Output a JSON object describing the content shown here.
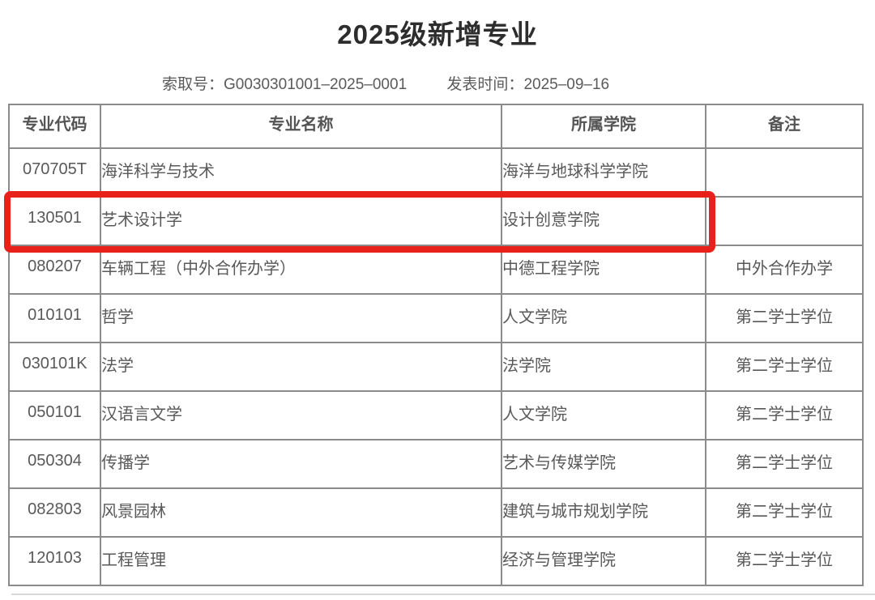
{
  "page": {
    "title": "2025级新增专业"
  },
  "meta": {
    "request_label": "索取号：",
    "request_value": "G0030301001–2025–0001",
    "publish_label": "发表时间：",
    "publish_value": "2025–09–16"
  },
  "table": {
    "columns": [
      "专业代码",
      "专业名称",
      "所属学院",
      "备注"
    ],
    "rows": [
      {
        "code": "070705T",
        "name": "海洋科学与技术",
        "college": "海洋与地球科学学院",
        "remark": "",
        "highlighted": false
      },
      {
        "code": "130501",
        "name": "艺术设计学",
        "college": "设计创意学院",
        "remark": "",
        "highlighted": true
      },
      {
        "code": "080207",
        "name": "车辆工程（中外合作办学）",
        "college": "中德工程学院",
        "remark": "中外合作办学",
        "highlighted": false
      },
      {
        "code": "010101",
        "name": "哲学",
        "college": "人文学院",
        "remark": "第二学士学位",
        "highlighted": false
      },
      {
        "code": "030101K",
        "name": "法学",
        "college": "法学院",
        "remark": "第二学士学位",
        "highlighted": false
      },
      {
        "code": "050101",
        "name": "汉语言文学",
        "college": "人文学院",
        "remark": "第二学士学位",
        "highlighted": false
      },
      {
        "code": "050304",
        "name": "传播学",
        "college": "艺术与传媒学院",
        "remark": "第二学士学位",
        "highlighted": false
      },
      {
        "code": "082803",
        "name": "风景园林",
        "college": "建筑与城市规划学院",
        "remark": "第二学士学位",
        "highlighted": false
      },
      {
        "code": "120103",
        "name": "工程管理",
        "college": "经济与管理学院",
        "remark": "第二学士学位",
        "highlighted": false
      }
    ]
  },
  "colors": {
    "highlight_border": "#e8221a",
    "table_border": "#8b8b8b",
    "body_text": "#595959",
    "title_text": "#2d2d2d"
  }
}
